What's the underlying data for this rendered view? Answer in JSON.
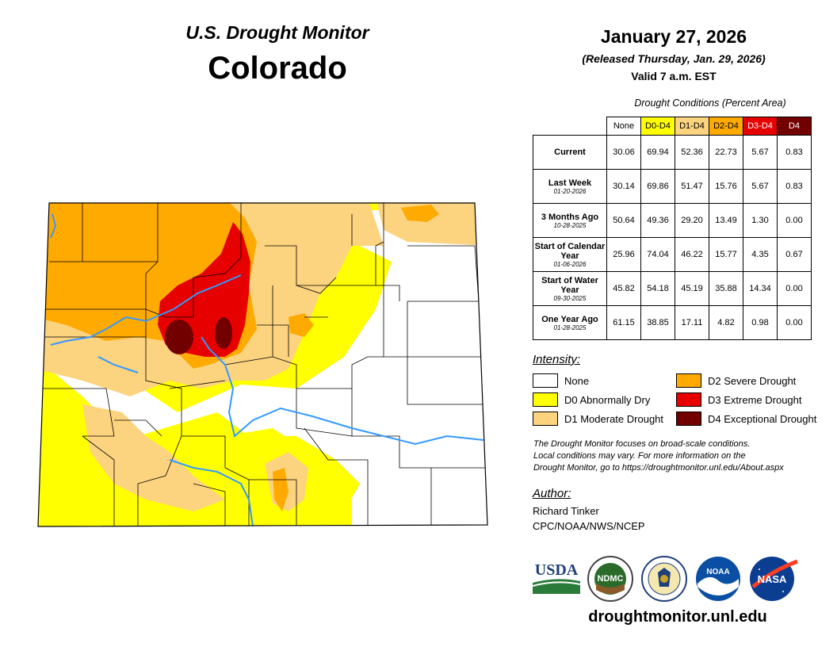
{
  "header": {
    "subtitle": "U.S. Drought Monitor",
    "state": "Colorado",
    "date": "January 27, 2026",
    "released": "(Released Thursday, Jan. 29, 2026)",
    "valid": "Valid 7 a.m. EST"
  },
  "colors": {
    "none": "#ffffff",
    "d0": "#ffff00",
    "d1": "#fcd37f",
    "d2": "#ffaa00",
    "d3": "#e60000",
    "d4": "#730000",
    "river": "#3399ff"
  },
  "table": {
    "caption": "Drought Conditions (Percent Area)",
    "columns": [
      "None",
      "D0-D4",
      "D1-D4",
      "D2-D4",
      "D3-D4",
      "D4"
    ],
    "rows": [
      {
        "label": "Current",
        "sub": "",
        "values": [
          "30.06",
          "69.94",
          "52.36",
          "22.73",
          "5.67",
          "0.83"
        ]
      },
      {
        "label": "Last Week",
        "sub": "01-20-2026",
        "values": [
          "30.14",
          "69.86",
          "51.47",
          "15.76",
          "5.67",
          "0.83"
        ]
      },
      {
        "label": "3 Months Ago",
        "sub": "10-28-2025",
        "values": [
          "50.64",
          "49.36",
          "29.20",
          "13.49",
          "1.30",
          "0.00"
        ]
      },
      {
        "label": "Start of Calendar Year",
        "sub": "01-06-2026",
        "values": [
          "25.96",
          "74.04",
          "46.22",
          "15.77",
          "4.35",
          "0.67"
        ]
      },
      {
        "label": "Start of Water Year",
        "sub": "09-30-2025",
        "values": [
          "45.82",
          "54.18",
          "45.19",
          "35.88",
          "14.34",
          "0.00"
        ]
      },
      {
        "label": "One Year Ago",
        "sub": "01-28-2025",
        "values": [
          "61.15",
          "38.85",
          "17.11",
          "4.82",
          "0.98",
          "0.00"
        ]
      }
    ]
  },
  "legend": {
    "title": "Intensity:",
    "items": [
      {
        "label": "None",
        "color": "#ffffff"
      },
      {
        "label": "D0 Abnormally Dry",
        "color": "#ffff00"
      },
      {
        "label": "D1 Moderate Drought",
        "color": "#fcd37f"
      },
      {
        "label": "D2 Severe Drought",
        "color": "#ffaa00"
      },
      {
        "label": "D3 Extreme Drought",
        "color": "#e60000"
      },
      {
        "label": "D4 Exceptional Drought",
        "color": "#730000"
      }
    ]
  },
  "note": {
    "line1": "The Drought Monitor focuses on broad-scale conditions.",
    "line2": "Local conditions may vary. For more information on the",
    "line3": "Drought Monitor, go to https://droughtmonitor.unl.edu/About.aspx"
  },
  "author": {
    "title": "Author:",
    "name": "Richard Tinker",
    "org": "CPC/NOAA/NWS/NCEP"
  },
  "logos": {
    "usda": "USDA",
    "ndmc": "NDMC",
    "noaa": "NOAA",
    "nasa": "NASA"
  },
  "footer": {
    "url": "droughtmonitor.unl.edu"
  }
}
